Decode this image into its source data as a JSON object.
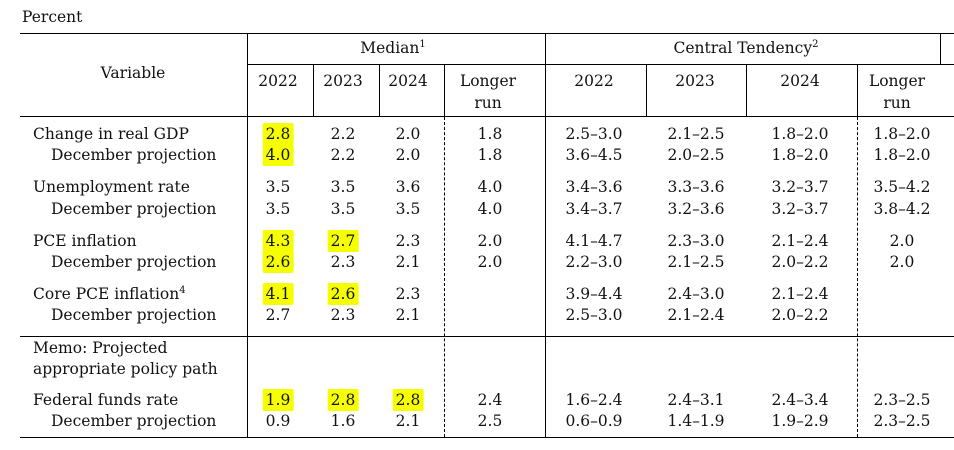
{
  "unit_label": "Percent",
  "header": {
    "variable": "Variable",
    "median": "Median",
    "median_note": "1",
    "central_tendency": "Central Tendency",
    "central_note": "2",
    "years": [
      "2022",
      "2023",
      "2024"
    ],
    "longer_run_1": "Longer",
    "longer_run_2": "run"
  },
  "rows": [
    {
      "label": "Change in real GDP",
      "median": [
        "2.8",
        "2.2",
        "2.0",
        "1.8"
      ],
      "ct": [
        "2.5–3.0",
        "2.1–2.5",
        "1.8–2.0",
        "1.8–2.0"
      ]
    },
    {
      "label": "December projection",
      "median": [
        "4.0",
        "2.2",
        "2.0",
        "1.8"
      ],
      "ct": [
        "3.6–4.5",
        "2.0–2.5",
        "1.8–2.0",
        "1.8–2.0"
      ]
    },
    {
      "label": "Unemployment rate",
      "median": [
        "3.5",
        "3.5",
        "3.6",
        "4.0"
      ],
      "ct": [
        "3.4–3.6",
        "3.3–3.6",
        "3.2–3.7",
        "3.5–4.2"
      ]
    },
    {
      "label": "December projection",
      "median": [
        "3.5",
        "3.5",
        "3.5",
        "4.0"
      ],
      "ct": [
        "3.4–3.7",
        "3.2–3.6",
        "3.2–3.7",
        "3.8–4.2"
      ]
    },
    {
      "label": "PCE inflation",
      "median": [
        "4.3",
        "2.7",
        "2.3",
        "2.0"
      ],
      "ct": [
        "4.1–4.7",
        "2.3–3.0",
        "2.1–2.4",
        "2.0"
      ]
    },
    {
      "label": "December projection",
      "median": [
        "2.6",
        "2.3",
        "2.1",
        "2.0"
      ],
      "ct": [
        "2.2–3.0",
        "2.1–2.5",
        "2.0–2.2",
        "2.0"
      ]
    },
    {
      "label": "Core PCE inflation",
      "note": "4",
      "median": [
        "4.1",
        "2.6",
        "2.3",
        ""
      ],
      "ct": [
        "3.9–4.4",
        "2.4–3.0",
        "2.1–2.4",
        ""
      ]
    },
    {
      "label": "December projection",
      "median": [
        "2.7",
        "2.3",
        "2.1",
        ""
      ],
      "ct": [
        "2.5–3.0",
        "2.1–2.4",
        "2.0–2.2",
        ""
      ]
    },
    {
      "label": "Federal funds rate",
      "median": [
        "1.9",
        "2.8",
        "2.8",
        "2.4"
      ],
      "ct": [
        "1.6–2.4",
        "2.4–3.1",
        "2.4–3.4",
        "2.3–2.5"
      ]
    },
    {
      "label": "December projection",
      "median": [
        "0.9",
        "1.6",
        "2.1",
        "2.5"
      ],
      "ct": [
        "0.6–0.9",
        "1.4–1.9",
        "1.9–2.9",
        "2.3–2.5"
      ]
    }
  ],
  "memo": {
    "line1": "Memo: Projected",
    "line2": "appropriate policy path"
  },
  "highlight_color": "#f6ff00"
}
